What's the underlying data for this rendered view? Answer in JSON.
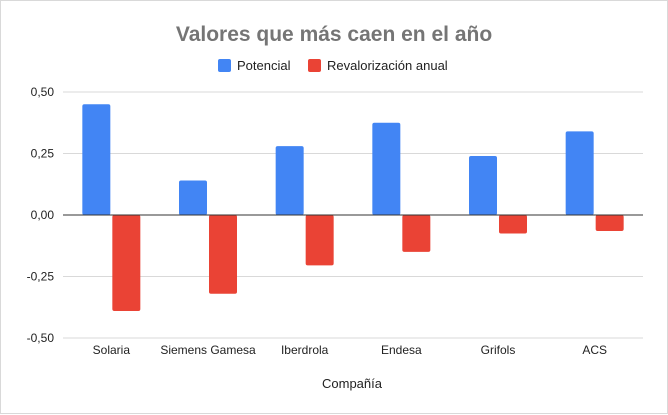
{
  "chart_data": {
    "type": "bar",
    "title": "Valores que más caen en el año",
    "xlabel": "Compañía",
    "ylabel": "",
    "categories": [
      "Solaria",
      "Siemens Gamesa",
      "Iberdrola",
      "Endesa",
      "Grifols",
      "ACS"
    ],
    "series": [
      {
        "name": "Potencial",
        "color": "#4285f4",
        "values": [
          0.45,
          0.14,
          0.28,
          0.375,
          0.24,
          0.34
        ]
      },
      {
        "name": "Revalorización anual",
        "color": "#ea4335",
        "values": [
          -0.39,
          -0.32,
          -0.205,
          -0.15,
          -0.075,
          -0.065
        ]
      }
    ],
    "ylim": [
      -0.5,
      0.5
    ],
    "yticks": [
      0.5,
      0.25,
      0.0,
      -0.25,
      -0.5
    ],
    "ytick_labels": [
      "0,50",
      "0,25",
      "0,00",
      "-0,25",
      "-0,50"
    ],
    "legend": "top-center",
    "grid": true
  }
}
